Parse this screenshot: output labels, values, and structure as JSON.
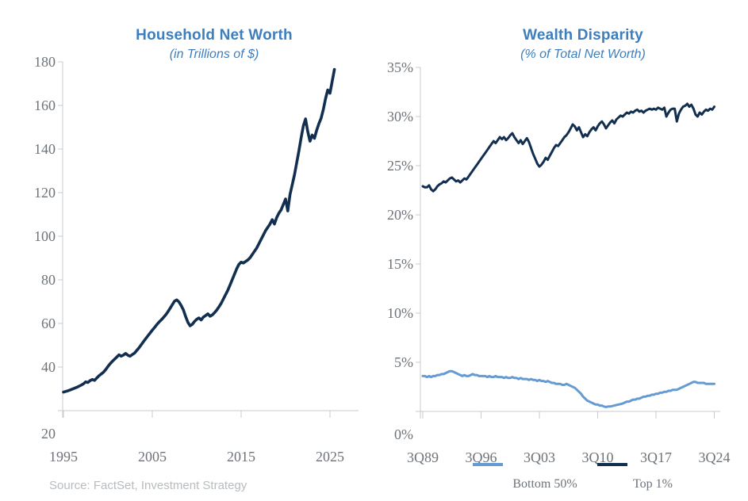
{
  "page": {
    "source_note": "Source: FactSet, Investment Strategy"
  },
  "colors": {
    "title_blue": "#3d7ebd",
    "navy": "#132f4f",
    "light_blue": "#639bd2",
    "tick_text": "#6d7378",
    "axis_line": "#c7cbce",
    "legend_text": "#6d7378",
    "source_text": "#b8bcbf"
  },
  "chart_data": [
    {
      "type": "line",
      "title": "Household Net Worth",
      "subtitle": "(in Trillions of $)",
      "xlabel": "",
      "ylabel": "",
      "grid": false,
      "x_start": 1995.0,
      "x_step": 0.25,
      "xlim": [
        1995,
        2028.2
      ],
      "ylim": [
        20,
        180
      ],
      "x_tick_labels": [
        "1995",
        "2005",
        "2015",
        "2025"
      ],
      "x_tick_values": [
        1995,
        2005,
        2015,
        2025
      ],
      "y_tick_labels": [
        "20",
        "40",
        "60",
        "80",
        "100",
        "120",
        "140",
        "160",
        "180"
      ],
      "y_tick_values": [
        20,
        40,
        60,
        80,
        100,
        120,
        140,
        160,
        180
      ],
      "series": [
        {
          "name": "Household Net Worth",
          "color_key": "navy",
          "values": [
            28.5,
            28.8,
            29.1,
            29.5,
            29.9,
            30.3,
            30.7,
            31.2,
            31.7,
            32.3,
            33.2,
            32.9,
            33.8,
            34.3,
            33.9,
            35.0,
            36.0,
            36.8,
            37.6,
            38.8,
            40.2,
            41.5,
            42.6,
            43.6,
            44.6,
            45.6,
            45.0,
            45.5,
            46.2,
            45.4,
            45.0,
            45.7,
            46.4,
            47.6,
            48.8,
            50.2,
            51.6,
            53.0,
            54.3,
            55.6,
            56.9,
            58.1,
            59.4,
            60.6,
            61.6,
            62.7,
            63.9,
            65.3,
            66.9,
            68.6,
            70.2,
            70.8,
            69.9,
            68.2,
            66.2,
            63.2,
            60.6,
            58.9,
            59.6,
            60.9,
            61.9,
            62.5,
            61.6,
            62.9,
            63.6,
            64.4,
            63.3,
            63.9,
            64.9,
            66.1,
            67.6,
            69.2,
            71.2,
            73.2,
            75.2,
            77.6,
            80.1,
            82.6,
            85.1,
            87.1,
            88.1,
            87.7,
            88.4,
            89.1,
            90.1,
            91.6,
            93.1,
            94.6,
            96.6,
            98.6,
            100.6,
            102.6,
            104.1,
            105.6,
            107.6,
            105.6,
            108.6,
            110.6,
            112.1,
            114.6,
            117.1,
            111.6,
            119.1,
            123.6,
            128.1,
            133.6,
            139.1,
            145.1,
            150.6,
            153.8,
            148.0,
            143.6,
            146.4,
            144.9,
            148.6,
            151.6,
            154.1,
            158.1,
            163.1,
            167.1,
            165.6,
            171.1,
            176.5
          ]
        }
      ]
    },
    {
      "type": "line",
      "title": "Wealth Disparity",
      "subtitle": "(% of Total Net Worth)",
      "xlabel": "",
      "ylabel": "",
      "grid": false,
      "x_start": 1989.5,
      "x_step": 0.25,
      "xlim": [
        1989.5,
        2025.2
      ],
      "ylim": [
        0,
        35
      ],
      "x_tick_labels": [
        "3Q89",
        "3Q96",
        "3Q03",
        "3Q10",
        "3Q17",
        "3Q24"
      ],
      "x_tick_values": [
        1989.5,
        1996.5,
        2003.5,
        2010.5,
        2017.5,
        2024.5
      ],
      "y_tick_labels": [
        "0%",
        "5%",
        "10%",
        "15%",
        "20%",
        "25%",
        "30%",
        "35%"
      ],
      "y_tick_values": [
        0,
        5,
        10,
        15,
        20,
        25,
        30,
        35
      ],
      "legend": [
        {
          "label": "Bottom 50%",
          "color_key": "light_blue"
        },
        {
          "label": "Top 1%",
          "color_key": "navy"
        }
      ],
      "series": [
        {
          "name": "Bottom 50%",
          "color_key": "light_blue",
          "values": [
            3.6,
            3.6,
            3.5,
            3.6,
            3.5,
            3.6,
            3.6,
            3.7,
            3.7,
            3.8,
            3.8,
            3.9,
            4.0,
            4.1,
            4.1,
            4.0,
            3.9,
            3.8,
            3.7,
            3.6,
            3.7,
            3.6,
            3.6,
            3.7,
            3.8,
            3.7,
            3.7,
            3.6,
            3.6,
            3.6,
            3.6,
            3.5,
            3.6,
            3.5,
            3.5,
            3.6,
            3.5,
            3.5,
            3.5,
            3.4,
            3.5,
            3.4,
            3.4,
            3.5,
            3.4,
            3.4,
            3.3,
            3.4,
            3.3,
            3.3,
            3.3,
            3.2,
            3.3,
            3.2,
            3.2,
            3.1,
            3.2,
            3.1,
            3.1,
            3.0,
            3.1,
            3.0,
            2.9,
            2.9,
            2.8,
            2.8,
            2.8,
            2.7,
            2.7,
            2.8,
            2.7,
            2.6,
            2.5,
            2.4,
            2.2,
            2.0,
            1.8,
            1.5,
            1.3,
            1.1,
            1.0,
            0.9,
            0.8,
            0.7,
            0.7,
            0.6,
            0.6,
            0.5,
            0.45,
            0.5,
            0.5,
            0.55,
            0.6,
            0.65,
            0.7,
            0.75,
            0.8,
            0.9,
            1.0,
            1.0,
            1.1,
            1.2,
            1.2,
            1.3,
            1.3,
            1.4,
            1.5,
            1.5,
            1.6,
            1.6,
            1.7,
            1.7,
            1.8,
            1.8,
            1.9,
            1.9,
            2.0,
            2.0,
            2.1,
            2.1,
            2.2,
            2.2,
            2.2,
            2.3,
            2.4,
            2.5,
            2.6,
            2.7,
            2.8,
            2.9,
            3.0,
            3.0,
            2.9,
            2.9,
            2.9,
            2.9,
            2.8,
            2.8,
            2.8,
            2.8,
            2.8
          ]
        },
        {
          "name": "Top 1%",
          "color_key": "navy",
          "values": [
            22.9,
            22.8,
            22.8,
            23.0,
            22.6,
            22.4,
            22.6,
            22.9,
            23.1,
            23.2,
            23.4,
            23.3,
            23.5,
            23.7,
            23.8,
            23.6,
            23.4,
            23.5,
            23.3,
            23.5,
            23.7,
            23.6,
            23.9,
            24.2,
            24.5,
            24.8,
            25.1,
            25.4,
            25.7,
            26.0,
            26.3,
            26.6,
            26.9,
            27.2,
            27.5,
            27.3,
            27.6,
            27.9,
            27.7,
            27.9,
            27.6,
            27.8,
            28.1,
            28.3,
            27.9,
            27.6,
            27.3,
            27.6,
            27.2,
            27.5,
            27.8,
            27.4,
            26.8,
            26.2,
            25.7,
            25.2,
            24.9,
            25.1,
            25.4,
            25.8,
            25.6,
            26.0,
            26.4,
            26.8,
            27.1,
            27.0,
            27.3,
            27.6,
            27.9,
            28.1,
            28.4,
            28.8,
            29.2,
            29.0,
            28.6,
            28.9,
            28.4,
            27.9,
            28.2,
            28.0,
            28.4,
            28.7,
            28.9,
            28.6,
            29.0,
            29.3,
            29.5,
            29.2,
            28.8,
            29.1,
            29.4,
            29.6,
            29.3,
            29.7,
            29.9,
            30.1,
            30.0,
            30.2,
            30.4,
            30.3,
            30.5,
            30.4,
            30.6,
            30.7,
            30.5,
            30.6,
            30.4,
            30.6,
            30.7,
            30.8,
            30.7,
            30.8,
            30.7,
            30.9,
            30.8,
            30.7,
            30.9,
            30.0,
            30.4,
            30.7,
            30.8,
            30.8,
            29.5,
            30.3,
            30.7,
            31.0,
            31.1,
            31.3,
            31.0,
            31.2,
            30.8,
            30.2,
            30.0,
            30.4,
            30.2,
            30.5,
            30.7,
            30.6,
            30.8,
            30.7,
            31.0
          ]
        }
      ]
    }
  ]
}
